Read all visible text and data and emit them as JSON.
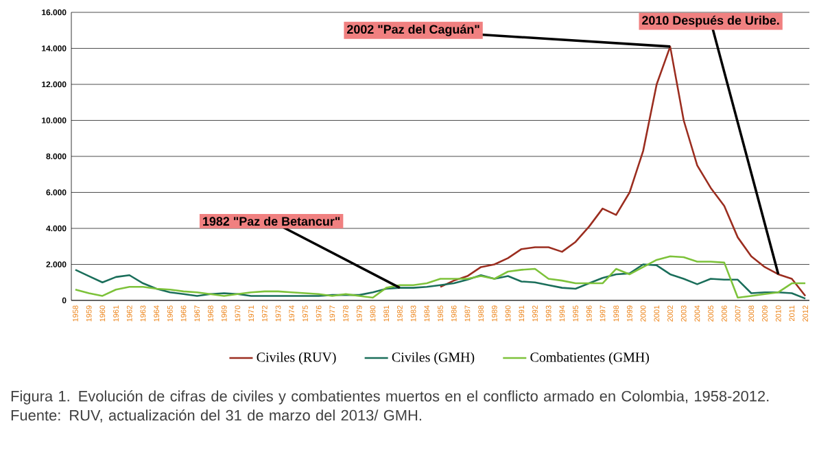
{
  "chart_data": {
    "type": "line",
    "categories": [
      "1958",
      "1959",
      "1960",
      "1961",
      "1962",
      "1963",
      "1964",
      "1965",
      "1966",
      "1967",
      "1968",
      "1969",
      "1970",
      "1971",
      "1972",
      "1973",
      "1974",
      "1975",
      "1976",
      "1977",
      "1978",
      "1979",
      "1980",
      "1981",
      "1982",
      "1983",
      "1984",
      "1985",
      "1986",
      "1987",
      "1988",
      "1989",
      "1990",
      "1991",
      "1992",
      "1993",
      "1994",
      "1995",
      "1996",
      "1997",
      "1998",
      "1999",
      "2000",
      "2001",
      "2002",
      "2003",
      "2004",
      "2005",
      "2006",
      "2007",
      "2008",
      "2009",
      "2010",
      "2011",
      "2012"
    ],
    "series": [
      {
        "name": "Civiles (RUV)",
        "color": "#9b2d1f",
        "values": [
          null,
          null,
          null,
          null,
          null,
          null,
          null,
          null,
          null,
          null,
          null,
          null,
          null,
          null,
          null,
          null,
          null,
          null,
          null,
          null,
          null,
          null,
          null,
          null,
          null,
          null,
          null,
          750,
          1100,
          1350,
          1850,
          2000,
          2350,
          2850,
          2950,
          2950,
          2700,
          3250,
          4100,
          5100,
          4750,
          6000,
          8300,
          12000,
          14100,
          10000,
          7500,
          6250,
          5250,
          3500,
          2450,
          1850,
          1450,
          1200,
          250
        ]
      },
      {
        "name": "Civiles (GMH)",
        "color": "#1a6e5a",
        "values": [
          1700,
          1350,
          1000,
          1300,
          1400,
          950,
          650,
          450,
          350,
          250,
          350,
          400,
          350,
          250,
          250,
          250,
          250,
          250,
          250,
          300,
          300,
          300,
          450,
          650,
          700,
          700,
          750,
          850,
          950,
          1150,
          1400,
          1200,
          1350,
          1050,
          1000,
          850,
          700,
          650,
          950,
          1250,
          1450,
          1500,
          2000,
          1950,
          1450,
          1200,
          900,
          1200,
          1150,
          1150,
          400,
          450,
          450,
          400,
          100
        ]
      },
      {
        "name": "Combatientes (GMH)",
        "color": "#7dc23a",
        "values": [
          600,
          400,
          250,
          600,
          750,
          750,
          650,
          600,
          500,
          450,
          350,
          250,
          350,
          450,
          500,
          500,
          450,
          400,
          350,
          250,
          350,
          250,
          150,
          700,
          850,
          850,
          950,
          1200,
          1200,
          1200,
          1350,
          1200,
          1600,
          1700,
          1750,
          1200,
          1100,
          950,
          950,
          950,
          1750,
          1450,
          1850,
          2250,
          2450,
          2400,
          2150,
          2150,
          2100,
          150,
          250,
          350,
          450,
          950,
          950
        ]
      }
    ],
    "ylim": [
      0,
      16000
    ],
    "yticks": [
      {
        "value": 0,
        "label": "0"
      },
      {
        "value": 2000,
        "label": "2.000"
      },
      {
        "value": 4000,
        "label": "4.000"
      },
      {
        "value": 6000,
        "label": "6.000"
      },
      {
        "value": 8000,
        "label": "8.000"
      },
      {
        "value": 10000,
        "label": "10.000"
      },
      {
        "value": 12000,
        "label": "12.000"
      },
      {
        "value": 14000,
        "label": "14.000"
      },
      {
        "value": 16000,
        "label": "16.000"
      }
    ],
    "grid": "y",
    "legend": "bottom",
    "marker": "none",
    "line_style": "solid",
    "annotations": [
      {
        "text": "1982 \"Paz de Betancur\"",
        "x": "1982",
        "y": 700
      },
      {
        "text": "2002 \"Paz del Caguán\"",
        "x": "2002",
        "y": 14100
      },
      {
        "text": "2010 Después de Uribe.",
        "x": "2010",
        "y": 1450
      },
      "Figura 1. Evolución de cifras de civiles y combatientes muertos en el conflicto armado en Colombia, 1958-2012. Fuente: RUV, actualización del 31 de marzo del 2013/ GMH."
    ]
  }
}
